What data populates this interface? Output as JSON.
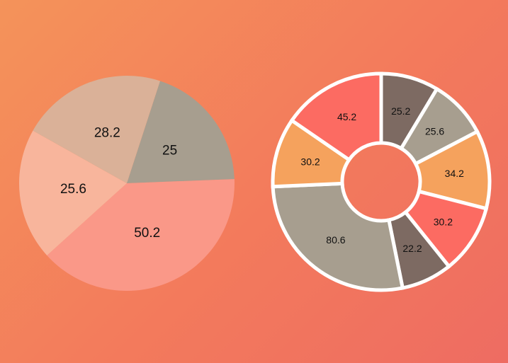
{
  "chart_data": [
    {
      "type": "pie",
      "slices": [
        {
          "label": "25",
          "value": 25,
          "color": "#a79e8f"
        },
        {
          "label": "50.2",
          "value": 50.2,
          "color": "#fa9888"
        },
        {
          "label": "25.6",
          "value": 25.6,
          "color": "#f8b59c"
        },
        {
          "label": "28.2",
          "value": 28.2,
          "color": "#dab198"
        }
      ]
    },
    {
      "type": "pie",
      "subtype": "donut",
      "highlighted_index": 8,
      "slices": [
        {
          "label": "25.2",
          "value": 25.2,
          "color": "#7d6a62"
        },
        {
          "label": "25.6",
          "value": 25.6,
          "color": "#a79e8f"
        },
        {
          "label": "34.2",
          "value": 34.2,
          "color": "#f5a25d"
        },
        {
          "label": "30.2",
          "value": 30.2,
          "color": "#fc6b62"
        },
        {
          "label": "22.2",
          "value": 22.2,
          "color": "#7d6a62"
        },
        {
          "label": "80.6",
          "value": 80.6,
          "color": "#a79e8f"
        },
        {
          "label": "30.2",
          "value": 30.2,
          "color": "#f5a25d"
        },
        {
          "label": "45.2",
          "value": 45.2,
          "color": "#fc6b62"
        }
      ]
    }
  ]
}
